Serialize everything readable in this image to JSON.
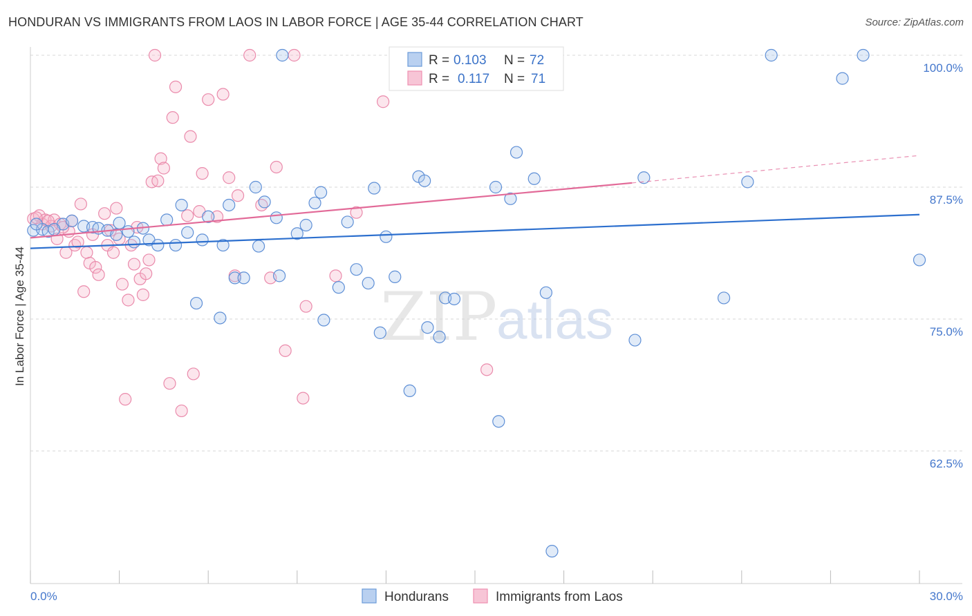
{
  "title": "HONDURAN VS IMMIGRANTS FROM LAOS IN LABOR FORCE | AGE 35-44 CORRELATION CHART",
  "source": "Source: ZipAtlas.com",
  "watermark": {
    "part1": "ZIP",
    "part2": "atlas"
  },
  "legend": {
    "r_label": "R =",
    "n_label": "N =",
    "rows": [
      {
        "r": "0.103",
        "n": "72"
      },
      {
        "r": "0.117",
        "n": "71"
      }
    ]
  },
  "chart_data": {
    "type": "scatter",
    "title": "HONDURAN VS IMMIGRANTS FROM LAOS IN LABOR FORCE | AGE 35-44 CORRELATION CHART",
    "xlabel": "",
    "ylabel": "In Labor Force | Age 35-44",
    "xlim": [
      0,
      30
    ],
    "ylim": [
      51.5,
      101.2
    ],
    "x_tick_labels": [
      "0.0%",
      "30.0%"
    ],
    "y_ticks": [
      62.5,
      75.0,
      87.5,
      100.0
    ],
    "y_tick_labels": [
      "62.5%",
      "75.0%",
      "87.5%",
      "100.0%"
    ],
    "grid": true,
    "legend_position": "top-center",
    "colors": {
      "Hondurans": "#6b9bd8",
      "Immigrants from Laos": "#ee8fb0",
      "Hondurans_line": "#2c6fce",
      "Laos_line": "#e26a98"
    },
    "series": [
      {
        "name": "Hondurans",
        "trend": {
          "x": [
            0,
            30
          ],
          "y": [
            81.7,
            84.9
          ]
        },
        "points": [
          [
            0.1,
            83.4
          ],
          [
            0.4,
            83.5
          ],
          [
            0.6,
            83.3
          ],
          [
            1.1,
            84.0
          ],
          [
            1.4,
            84.3
          ],
          [
            1.8,
            83.8
          ],
          [
            2.1,
            83.7
          ],
          [
            2.3,
            83.6
          ],
          [
            2.6,
            83.4
          ],
          [
            2.9,
            83.0
          ],
          [
            3.0,
            84.1
          ],
          [
            3.3,
            83.3
          ],
          [
            3.5,
            82.3
          ],
          [
            3.8,
            83.6
          ],
          [
            4.0,
            82.5
          ],
          [
            4.3,
            82.0
          ],
          [
            4.6,
            84.4
          ],
          [
            4.9,
            82.0
          ],
          [
            5.1,
            85.8
          ],
          [
            5.3,
            83.2
          ],
          [
            5.6,
            76.5
          ],
          [
            5.8,
            82.5
          ],
          [
            6.0,
            84.7
          ],
          [
            6.4,
            75.1
          ],
          [
            6.5,
            82.0
          ],
          [
            6.7,
            85.8
          ],
          [
            6.9,
            78.9
          ],
          [
            7.2,
            78.9
          ],
          [
            7.6,
            87.5
          ],
          [
            7.7,
            81.9
          ],
          [
            7.9,
            86.1
          ],
          [
            8.3,
            84.6
          ],
          [
            8.4,
            79.1
          ],
          [
            8.5,
            100.0
          ],
          [
            9.0,
            83.1
          ],
          [
            9.3,
            83.9
          ],
          [
            9.6,
            86.0
          ],
          [
            9.8,
            87.0
          ],
          [
            9.9,
            74.9
          ],
          [
            10.4,
            78.0
          ],
          [
            10.7,
            84.2
          ],
          [
            11.0,
            79.7
          ],
          [
            11.4,
            78.4
          ],
          [
            11.6,
            87.4
          ],
          [
            11.8,
            73.7
          ],
          [
            12.0,
            82.8
          ],
          [
            12.3,
            79.0
          ],
          [
            12.8,
            68.2
          ],
          [
            13.1,
            88.5
          ],
          [
            13.3,
            88.1
          ],
          [
            13.4,
            74.2
          ],
          [
            13.8,
            73.3
          ],
          [
            14.0,
            77.0
          ],
          [
            14.3,
            76.9
          ],
          [
            14.9,
            100.0
          ],
          [
            15.7,
            87.5
          ],
          [
            15.8,
            65.3
          ],
          [
            16.2,
            86.4
          ],
          [
            16.4,
            90.8
          ],
          [
            17.0,
            88.3
          ],
          [
            17.4,
            77.5
          ],
          [
            17.6,
            53.0
          ],
          [
            20.4,
            73.0
          ],
          [
            20.7,
            88.4
          ],
          [
            23.4,
            77.0
          ],
          [
            24.2,
            88.0
          ],
          [
            25.0,
            100.0
          ],
          [
            27.4,
            97.8
          ],
          [
            28.1,
            100.0
          ],
          [
            30.0,
            80.6
          ],
          [
            0.2,
            84.0
          ],
          [
            0.8,
            83.5
          ]
        ]
      },
      {
        "name": "Immigrants from Laos",
        "trend": {
          "x": [
            0,
            20.3
          ],
          "y": [
            82.7,
            87.9
          ]
        },
        "trend_dashed": {
          "x": [
            20.3,
            30
          ],
          "y": [
            87.9,
            90.5
          ]
        },
        "points": [
          [
            0.1,
            84.5
          ],
          [
            0.3,
            84.8
          ],
          [
            0.4,
            84.0
          ],
          [
            0.5,
            84.4
          ],
          [
            0.7,
            83.8
          ],
          [
            0.8,
            84.4
          ],
          [
            0.9,
            82.6
          ],
          [
            1.0,
            84.0
          ],
          [
            1.2,
            81.3
          ],
          [
            1.3,
            83.3
          ],
          [
            1.4,
            84.3
          ],
          [
            1.5,
            82.0
          ],
          [
            1.6,
            82.3
          ],
          [
            1.7,
            85.9
          ],
          [
            1.8,
            77.6
          ],
          [
            1.9,
            81.3
          ],
          [
            2.0,
            80.3
          ],
          [
            2.1,
            83.0
          ],
          [
            2.2,
            79.9
          ],
          [
            2.3,
            79.2
          ],
          [
            2.5,
            85.0
          ],
          [
            2.6,
            82.0
          ],
          [
            2.7,
            83.4
          ],
          [
            2.8,
            81.3
          ],
          [
            2.9,
            85.5
          ],
          [
            3.0,
            82.6
          ],
          [
            3.1,
            78.3
          ],
          [
            3.2,
            67.4
          ],
          [
            3.3,
            76.8
          ],
          [
            3.4,
            82.0
          ],
          [
            3.5,
            80.2
          ],
          [
            3.6,
            83.7
          ],
          [
            3.7,
            78.8
          ],
          [
            3.8,
            77.3
          ],
          [
            3.9,
            79.3
          ],
          [
            4.0,
            80.6
          ],
          [
            4.1,
            88.0
          ],
          [
            4.2,
            100.0
          ],
          [
            4.3,
            88.1
          ],
          [
            4.4,
            90.2
          ],
          [
            4.5,
            89.3
          ],
          [
            4.7,
            68.9
          ],
          [
            4.8,
            94.1
          ],
          [
            4.9,
            97.0
          ],
          [
            5.1,
            66.3
          ],
          [
            5.3,
            84.8
          ],
          [
            5.4,
            92.3
          ],
          [
            5.5,
            69.8
          ],
          [
            5.7,
            85.2
          ],
          [
            5.8,
            88.8
          ],
          [
            6.0,
            95.8
          ],
          [
            6.3,
            84.7
          ],
          [
            6.5,
            96.3
          ],
          [
            6.7,
            88.4
          ],
          [
            6.9,
            79.1
          ],
          [
            7.0,
            86.7
          ],
          [
            7.4,
            100.0
          ],
          [
            7.8,
            85.8
          ],
          [
            8.1,
            78.9
          ],
          [
            8.3,
            89.4
          ],
          [
            8.6,
            72.0
          ],
          [
            8.9,
            100.0
          ],
          [
            9.2,
            67.5
          ],
          [
            9.3,
            76.2
          ],
          [
            10.3,
            79.1
          ],
          [
            11.0,
            85.1
          ],
          [
            11.9,
            95.6
          ],
          [
            15.4,
            70.2
          ],
          [
            0.2,
            84.6
          ],
          [
            0.6,
            84.3
          ],
          [
            1.1,
            83.7
          ]
        ]
      }
    ]
  }
}
